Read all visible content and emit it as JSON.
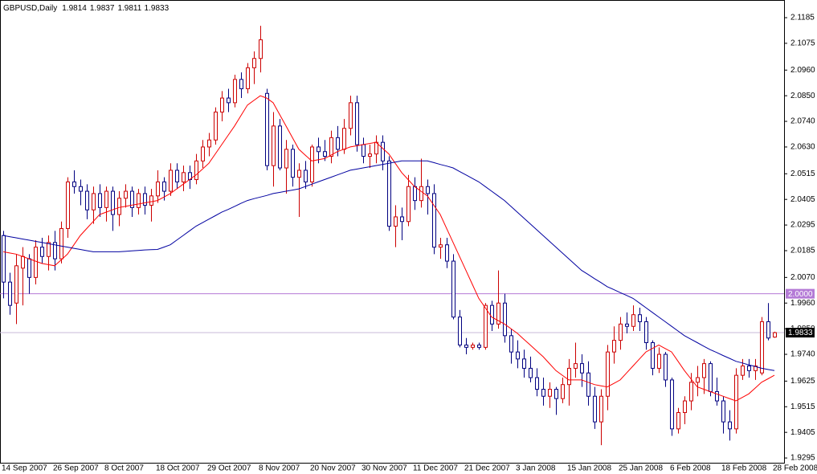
{
  "chart_data": {
    "type": "candlestick",
    "title": "GBPUSD,Daily",
    "categories": [
      "14 Sep 2007",
      null,
      null,
      null,
      null,
      null,
      null,
      null,
      "26 Sep 2007",
      null,
      null,
      null,
      null,
      null,
      null,
      null,
      "8 Oct 2007",
      null,
      null,
      null,
      null,
      null,
      null,
      null,
      "18 Oct 2007",
      null,
      null,
      null,
      null,
      null,
      null,
      null,
      "29 Oct 2007",
      null,
      null,
      null,
      null,
      null,
      null,
      null,
      "8 Nov 2007",
      null,
      null,
      null,
      null,
      null,
      null,
      null,
      "20 Nov 2007",
      null,
      null,
      null,
      null,
      null,
      null,
      null,
      "30 Nov 2007",
      null,
      null,
      null,
      null,
      null,
      null,
      null,
      "11 Dec 2007",
      null,
      null,
      null,
      null,
      null,
      null,
      null,
      "21 Dec 2007",
      null,
      null,
      null,
      null,
      null,
      null,
      null,
      "3 Jan 2008",
      null,
      null,
      null,
      null,
      null,
      null,
      null,
      "15 Jan 2008",
      null,
      null,
      null,
      null,
      null,
      null,
      null,
      "25 Jan 2008",
      null,
      null,
      null,
      null,
      null,
      null,
      null,
      "6 Feb 2008",
      null,
      null,
      null,
      null,
      null,
      null,
      null,
      "18 Feb 2008",
      null,
      null,
      null,
      null,
      null,
      null,
      null,
      "28 Feb 2008"
    ],
    "open": [
      2.025,
      2.005,
      1.996,
      2.011,
      2.015,
      2.007,
      2.02,
      2.016,
      2.022,
      2.015,
      2.028,
      2.048,
      2.046,
      2.044,
      2.036,
      2.043,
      2.037,
      2.044,
      2.034,
      2.041,
      2.044,
      2.037,
      2.043,
      2.038,
      2.042,
      2.048,
      2.044,
      2.053,
      2.048,
      2.052,
      2.049,
      2.057,
      2.063,
      2.066,
      2.078,
      2.084,
      2.082,
      2.092,
      2.088,
      2.097,
      2.101,
      2.086,
      2.055,
      2.072,
      2.054,
      2.062,
      2.05,
      2.053,
      2.048,
      2.063,
      2.061,
      2.059,
      2.067,
      2.062,
      2.071,
      2.082,
      2.064,
      2.059,
      2.06,
      2.065,
      2.057,
      2.029,
      2.033,
      2.031,
      2.046,
      2.04,
      2.046,
      2.043,
      2.02,
      2.021,
      2.014,
      1.99,
      1.978,
      1.977,
      1.978,
      1.977,
      1.995,
      1.987,
      1.996,
      1.982,
      1.975,
      1.972,
      1.968,
      1.964,
      1.959,
      1.956,
      1.959,
      1.955,
      1.961,
      1.968,
      1.97,
      1.966,
      1.956,
      1.945,
      1.956,
      1.975,
      1.98,
      1.987,
      1.986,
      1.991,
      1.988,
      1.979,
      1.968,
      1.974,
      1.963,
      1.942,
      1.949,
      1.954,
      1.962,
      1.964,
      1.97,
      1.958,
      1.954,
      1.945,
      1.942,
      1.965,
      1.969,
      1.967,
      1.966,
      1.988,
      1.9814
    ],
    "high": [
      2.027,
      2.009,
      2.017,
      2.02,
      2.017,
      2.023,
      2.024,
      2.025,
      2.027,
      2.031,
      2.05,
      2.053,
      2.049,
      2.047,
      2.046,
      2.047,
      2.046,
      2.046,
      2.044,
      2.047,
      2.046,
      2.045,
      2.046,
      2.045,
      2.053,
      2.05,
      2.056,
      2.056,
      2.055,
      2.055,
      2.06,
      2.066,
      2.069,
      2.08,
      2.087,
      2.088,
      2.094,
      2.095,
      2.099,
      2.104,
      2.115,
      2.088,
      2.078,
      2.075,
      2.066,
      2.064,
      2.056,
      2.057,
      2.064,
      2.067,
      2.066,
      2.07,
      2.072,
      2.075,
      2.085,
      2.085,
      2.067,
      2.064,
      2.068,
      2.068,
      2.059,
      2.038,
      2.037,
      2.051,
      2.05,
      2.058,
      2.049,
      2.047,
      2.024,
      2.024,
      2.017,
      1.993,
      1.981,
      1.979,
      1.979,
      1.996,
      1.997,
      2.01,
      2.0,
      1.985,
      1.98,
      1.976,
      1.973,
      1.968,
      1.964,
      1.962,
      1.96,
      1.964,
      1.972,
      1.979,
      1.974,
      1.971,
      1.96,
      1.959,
      1.978,
      1.986,
      1.99,
      1.992,
      1.995,
      1.994,
      1.99,
      1.98,
      1.977,
      1.975,
      1.964,
      1.951,
      1.956,
      1.966,
      1.969,
      1.972,
      1.971,
      1.964,
      1.956,
      1.95,
      1.968,
      1.972,
      1.972,
      1.972,
      1.99,
      1.996,
      1.9837
    ],
    "low": [
      1.998,
      1.991,
      1.987,
      1.995,
      2.0,
      2.004,
      2.013,
      2.01,
      2.01,
      2.013,
      2.024,
      2.043,
      2.038,
      2.032,
      2.03,
      2.033,
      2.031,
      2.027,
      2.029,
      2.037,
      2.033,
      2.034,
      2.034,
      2.031,
      2.039,
      2.04,
      2.042,
      2.045,
      2.044,
      2.045,
      2.047,
      2.054,
      2.059,
      2.064,
      2.074,
      2.078,
      2.08,
      2.084,
      2.086,
      2.09,
      2.095,
      2.053,
      2.046,
      2.053,
      2.043,
      2.046,
      2.033,
      2.045,
      2.046,
      2.056,
      2.057,
      2.056,
      2.059,
      2.06,
      2.068,
      2.061,
      2.056,
      2.054,
      2.056,
      2.053,
      2.027,
      2.02,
      2.023,
      2.029,
      2.036,
      2.037,
      2.034,
      2.017,
      2.015,
      2.011,
      1.989,
      1.977,
      1.974,
      1.976,
      1.976,
      1.976,
      1.984,
      1.985,
      1.979,
      1.97,
      1.968,
      1.964,
      1.962,
      1.956,
      1.952,
      1.951,
      1.948,
      1.953,
      1.952,
      1.964,
      1.96,
      1.952,
      1.942,
      1.935,
      1.95,
      1.97,
      1.976,
      1.983,
      1.984,
      1.984,
      1.976,
      1.965,
      1.966,
      1.96,
      1.939,
      1.94,
      1.944,
      1.95,
      1.956,
      1.957,
      1.956,
      1.952,
      1.94,
      1.937,
      1.94,
      1.963,
      1.964,
      1.963,
      1.965,
      1.98,
      1.9811
    ],
    "close": [
      2.005,
      1.995,
      2.012,
      2.016,
      2.007,
      2.02,
      2.016,
      2.022,
      2.015,
      2.028,
      2.048,
      2.046,
      2.044,
      2.036,
      2.043,
      2.037,
      2.044,
      2.034,
      2.041,
      2.044,
      2.037,
      2.043,
      2.038,
      2.042,
      2.048,
      2.044,
      2.053,
      2.048,
      2.052,
      2.049,
      2.057,
      2.063,
      2.066,
      2.078,
      2.084,
      2.082,
      2.092,
      2.088,
      2.097,
      2.101,
      2.109,
      2.055,
      2.072,
      2.054,
      2.062,
      2.05,
      2.053,
      2.048,
      2.063,
      2.061,
      2.059,
      2.067,
      2.062,
      2.071,
      2.082,
      2.064,
      2.059,
      2.06,
      2.065,
      2.057,
      2.029,
      2.033,
      2.031,
      2.046,
      2.04,
      2.046,
      2.043,
      2.02,
      2.021,
      2.014,
      1.99,
      1.978,
      1.977,
      1.978,
      1.977,
      1.995,
      1.987,
      1.996,
      1.982,
      1.975,
      1.972,
      1.968,
      1.964,
      1.959,
      1.956,
      1.959,
      1.955,
      1.961,
      1.968,
      1.97,
      1.966,
      1.956,
      1.945,
      1.956,
      1.975,
      1.98,
      1.987,
      1.986,
      1.991,
      1.988,
      1.979,
      1.968,
      1.974,
      1.963,
      1.942,
      1.949,
      1.954,
      1.962,
      1.964,
      1.97,
      1.958,
      1.954,
      1.945,
      1.942,
      1.965,
      1.969,
      1.967,
      1.969,
      1.988,
      1.981,
      1.9833
    ],
    "up_color": "#cc0000",
    "down_color": "#000080",
    "moving_averages": [
      {
        "color": "#ff0000",
        "values": [
          2.018,
          2.0175,
          2.017,
          2.016,
          2.015,
          2.014,
          2.013,
          2.0125,
          2.012,
          2.0145,
          2.017,
          2.021,
          2.025,
          2.028,
          2.031,
          2.034,
          2.035,
          2.036,
          2.037,
          2.0375,
          2.038,
          2.0385,
          2.039,
          2.0395,
          2.04,
          2.0415,
          2.043,
          2.045,
          2.047,
          2.049,
          2.051,
          2.0535,
          2.056,
          2.06,
          2.064,
          2.068,
          2.072,
          2.0765,
          2.081,
          2.083,
          2.085,
          2.084,
          2.082,
          2.077,
          2.072,
          2.067,
          2.062,
          2.0595,
          2.057,
          2.0575,
          2.058,
          2.0595,
          2.061,
          2.062,
          2.063,
          2.0635,
          2.064,
          2.0645,
          2.065,
          2.0625,
          2.06,
          2.056,
          2.052,
          2.049,
          2.046,
          2.044,
          2.042,
          2.038,
          2.034,
          2.028,
          2.022,
          2.016,
          2.01,
          2.004,
          1.998,
          1.994,
          1.99,
          1.9885,
          1.987,
          1.985,
          1.983,
          1.9805,
          1.978,
          1.9755,
          1.973,
          1.97,
          1.967,
          1.965,
          1.963,
          1.963,
          1.963,
          1.962,
          1.961,
          1.9605,
          1.96,
          1.9615,
          1.963,
          1.966,
          1.969,
          1.972,
          1.975,
          1.9765,
          1.978,
          1.9765,
          1.975,
          1.971,
          1.967,
          1.9635,
          1.96,
          1.959,
          1.958,
          1.957,
          1.956,
          1.955,
          1.954,
          1.9555,
          1.957,
          1.9595,
          1.962,
          1.9635,
          1.965
        ]
      },
      {
        "color": "#0000a0",
        "values": [
          2.025,
          2.0245,
          2.024,
          2.0235,
          2.023,
          2.0225,
          2.022,
          2.0215,
          2.021,
          2.0205,
          2.02,
          2.0195,
          2.019,
          2.0185,
          2.018,
          2.018,
          2.018,
          2.018,
          2.018,
          2.0182,
          2.0184,
          2.0186,
          2.0188,
          2.0189,
          2.019,
          2.02,
          2.021,
          2.023,
          2.025,
          2.027,
          2.029,
          2.0305,
          2.032,
          2.0335,
          2.035,
          2.0362,
          2.0375,
          2.0388,
          2.04,
          2.0408,
          2.0415,
          2.0422,
          2.043,
          2.0435,
          2.044,
          2.0445,
          2.045,
          2.046,
          2.047,
          2.048,
          2.049,
          2.05,
          2.051,
          2.052,
          2.053,
          2.0535,
          2.054,
          2.0545,
          2.055,
          2.0555,
          2.056,
          2.0565,
          2.057,
          2.057,
          2.057,
          2.057,
          2.057,
          2.0563,
          2.0555,
          2.0548,
          2.054,
          2.0525,
          2.051,
          2.0495,
          2.048,
          2.046,
          2.044,
          2.042,
          2.04,
          2.0375,
          2.035,
          2.0325,
          2.03,
          2.0275,
          2.025,
          2.0225,
          2.02,
          2.0175,
          2.015,
          2.0125,
          2.01,
          2.0083,
          2.0065,
          2.0048,
          2.003,
          2.0018,
          2.0005,
          1.9993,
          1.998,
          1.996,
          1.994,
          1.992,
          1.99,
          1.988,
          1.986,
          1.984,
          1.982,
          1.9805,
          1.979,
          1.9775,
          1.976,
          1.9748,
          1.9735,
          1.9723,
          1.971,
          1.9703,
          1.9695,
          1.9688,
          1.968,
          1.9675,
          1.967
        ]
      }
    ],
    "hlines": [
      {
        "value": 2.0,
        "label": "2.0000",
        "color": "#b47ad6"
      }
    ],
    "price_line_color": "#c8b8d8",
    "ylim": [
      1.9278,
      2.1254
    ],
    "yticks": [
      2.1185,
      2.1075,
      {
        "value": 2.096,
        "label": "2.0960"
      },
      {
        "value": 2.085,
        "label": "2.0850"
      },
      {
        "value": 2.074,
        "label": "2.0740"
      },
      {
        "value": 2.063,
        "label": "2.0630"
      },
      2.0515,
      2.0405,
      2.0295,
      2.0185,
      {
        "value": 2.007,
        "label": "2.0070"
      },
      {
        "value": 1.996,
        "label": "1.9960"
      },
      {
        "value": 1.985,
        "label": "1.9850"
      },
      {
        "value": 1.974,
        "label": "1.9740"
      },
      1.9625,
      1.9515,
      1.9405,
      1.9295
    ],
    "grid": false
  }
}
